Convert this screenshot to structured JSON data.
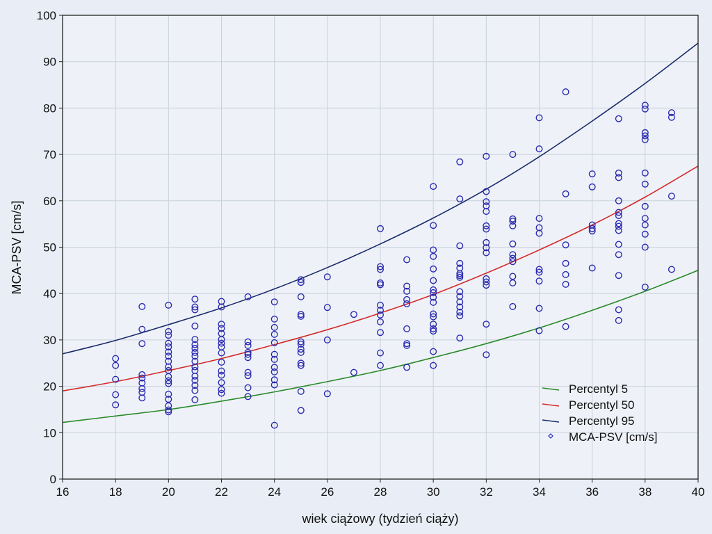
{
  "chart_data": {
    "type": "scatter",
    "xlabel": "wiek ciążowy (tydzień ciąży)",
    "ylabel": "MCA-PSV [cm/s]",
    "xlim": [
      16,
      40
    ],
    "ylim": [
      0,
      100
    ],
    "x_ticks": [
      "16",
      "18",
      "20",
      "22",
      "24",
      "26",
      "28",
      "30",
      "32",
      "34",
      "36",
      "38",
      "40"
    ],
    "y_ticks": [
      "0",
      "10",
      "20",
      "30",
      "40",
      "50",
      "60",
      "70",
      "80",
      "90",
      "100"
    ],
    "grid": true,
    "legend_position": "bottom-right",
    "legend": [
      {
        "label": "Percentyl 5",
        "color": "#2a8a2a",
        "kind": "line"
      },
      {
        "label": "Percentyl 50",
        "color": "#d42a2a",
        "kind": "line"
      },
      {
        "label": "Percentyl 95",
        "color": "#1a2a6a",
        "kind": "line"
      },
      {
        "label": "MCA-PSV [cm/s]",
        "color": "#2a2ab0",
        "kind": "marker"
      }
    ],
    "curves": [
      {
        "name": "Percentyl 5",
        "color": "#2a8a2a",
        "x": [
          16,
          18,
          20,
          22,
          24,
          26,
          28,
          30,
          32,
          34,
          36,
          38,
          40
        ],
        "y": [
          12.2,
          13.6,
          15.0,
          16.8,
          18.8,
          21.0,
          23.4,
          26.2,
          29.2,
          32.6,
          36.4,
          40.5,
          45.0
        ]
      },
      {
        "name": "Percentyl 50",
        "color": "#d42a2a",
        "x": [
          16,
          18,
          20,
          22,
          24,
          26,
          28,
          30,
          32,
          34,
          36,
          38,
          40
        ],
        "y": [
          19.0,
          21.0,
          23.4,
          26.0,
          29.0,
          32.2,
          35.8,
          39.8,
          44.4,
          49.4,
          54.8,
          60.8,
          67.5
        ]
      },
      {
        "name": "Percentyl 95",
        "color": "#1a2a6a",
        "x": [
          16,
          18,
          20,
          22,
          24,
          26,
          28,
          30,
          32,
          34,
          36,
          38,
          40
        ],
        "y": [
          27.0,
          29.9,
          33.3,
          36.9,
          41.0,
          45.6,
          50.7,
          56.3,
          62.5,
          69.5,
          77.2,
          85.3,
          94.0
        ]
      }
    ],
    "points": [
      [
        18,
        26
      ],
      [
        18,
        24.5
      ],
      [
        18,
        21.5
      ],
      [
        18,
        18.2
      ],
      [
        18,
        16
      ],
      [
        19,
        37.2
      ],
      [
        19,
        32.3
      ],
      [
        19,
        29.2
      ],
      [
        19,
        22.5
      ],
      [
        19,
        21.8
      ],
      [
        19,
        20.7
      ],
      [
        19,
        19.5
      ],
      [
        19,
        18.7
      ],
      [
        19,
        17.5
      ],
      [
        20,
        37.5
      ],
      [
        20,
        31.8
      ],
      [
        20,
        31
      ],
      [
        20,
        29.3
      ],
      [
        20,
        28.5
      ],
      [
        20,
        27.4
      ],
      [
        20,
        26.5
      ],
      [
        20,
        25.4
      ],
      [
        20,
        24.2
      ],
      [
        20,
        23.4
      ],
      [
        20,
        22.1
      ],
      [
        20,
        21.2
      ],
      [
        20,
        20.6
      ],
      [
        20,
        18.3
      ],
      [
        20,
        17.2
      ],
      [
        20,
        15.8
      ],
      [
        20,
        14.9
      ],
      [
        20,
        14.5
      ],
      [
        21,
        38.8
      ],
      [
        21,
        37.1
      ],
      [
        21,
        36.5
      ],
      [
        21,
        33
      ],
      [
        21,
        30.1
      ],
      [
        21,
        29
      ],
      [
        21,
        28.2
      ],
      [
        21,
        27.3
      ],
      [
        21,
        26.5
      ],
      [
        21,
        25.4
      ],
      [
        21,
        24.2
      ],
      [
        21,
        23.4
      ],
      [
        21,
        22.2
      ],
      [
        21,
        21.3
      ],
      [
        21,
        20.2
      ],
      [
        21,
        19.1
      ],
      [
        21,
        17.1
      ],
      [
        22,
        38.3
      ],
      [
        22,
        37.1
      ],
      [
        22,
        33.4
      ],
      [
        22,
        32.5
      ],
      [
        22,
        31.4
      ],
      [
        22,
        30.1
      ],
      [
        22,
        29.3
      ],
      [
        22,
        28.5
      ],
      [
        22,
        27.2
      ],
      [
        22,
        25.2
      ],
      [
        22,
        23.3
      ],
      [
        22,
        22.4
      ],
      [
        22,
        20.8
      ],
      [
        22,
        19.3
      ],
      [
        22,
        18.5
      ],
      [
        23,
        39.3
      ],
      [
        23,
        29.6
      ],
      [
        23,
        28.8
      ],
      [
        23,
        27.3
      ],
      [
        23,
        26.9
      ],
      [
        23,
        26.2
      ],
      [
        23,
        23
      ],
      [
        23,
        22.3
      ],
      [
        23,
        19.7
      ],
      [
        23,
        17.8
      ],
      [
        24,
        38.2
      ],
      [
        24,
        34.5
      ],
      [
        24,
        32.7
      ],
      [
        24,
        31.2
      ],
      [
        24,
        29.4
      ],
      [
        24,
        26.9
      ],
      [
        24,
        25.8
      ],
      [
        24,
        24.1
      ],
      [
        24,
        23.1
      ],
      [
        24,
        21.4
      ],
      [
        24,
        20.3
      ],
      [
        24,
        11.6
      ],
      [
        25,
        43
      ],
      [
        25,
        42.4
      ],
      [
        25,
        39.3
      ],
      [
        25,
        35.5
      ],
      [
        25,
        35.1
      ],
      [
        25,
        29.6
      ],
      [
        25,
        29.1
      ],
      [
        25,
        28
      ],
      [
        25,
        27.3
      ],
      [
        25,
        25
      ],
      [
        25,
        24.5
      ],
      [
        25,
        18.9
      ],
      [
        25,
        14.8
      ],
      [
        26,
        43.6
      ],
      [
        26,
        37
      ],
      [
        26,
        30
      ],
      [
        26,
        18.4
      ],
      [
        27,
        35.5
      ],
      [
        27,
        23
      ],
      [
        28,
        54
      ],
      [
        28,
        45.8
      ],
      [
        28,
        45.2
      ],
      [
        28,
        42.3
      ],
      [
        28,
        41.9
      ],
      [
        28,
        37.5
      ],
      [
        28,
        36.4
      ],
      [
        28,
        35.4
      ],
      [
        28,
        33.9
      ],
      [
        28,
        31.6
      ],
      [
        28,
        27.2
      ],
      [
        28,
        24.5
      ],
      [
        29,
        47.3
      ],
      [
        29,
        41.6
      ],
      [
        29,
        40.5
      ],
      [
        29,
        38.7
      ],
      [
        29,
        37.8
      ],
      [
        29,
        32.4
      ],
      [
        29,
        29.2
      ],
      [
        29,
        28.8
      ],
      [
        29,
        24.1
      ],
      [
        30,
        63.1
      ],
      [
        30,
        54.7
      ],
      [
        30,
        49.4
      ],
      [
        30,
        48
      ],
      [
        30,
        45.3
      ],
      [
        30,
        42.8
      ],
      [
        30,
        40.8
      ],
      [
        30,
        40.2
      ],
      [
        30,
        39.2
      ],
      [
        30,
        38.1
      ],
      [
        30,
        35.6
      ],
      [
        30,
        35
      ],
      [
        30,
        33.4
      ],
      [
        30,
        32.4
      ],
      [
        30,
        31.9
      ],
      [
        30,
        27.5
      ],
      [
        30,
        24.5
      ],
      [
        31,
        68.4
      ],
      [
        31,
        60.4
      ],
      [
        31,
        50.3
      ],
      [
        31,
        46.5
      ],
      [
        31,
        45.5
      ],
      [
        31,
        44.3
      ],
      [
        31,
        43.9
      ],
      [
        31,
        43.5
      ],
      [
        31,
        40.4
      ],
      [
        31,
        39.4
      ],
      [
        31,
        38.2
      ],
      [
        31,
        37.1
      ],
      [
        31,
        36
      ],
      [
        31,
        35.2
      ],
      [
        31,
        30.4
      ],
      [
        32,
        69.6
      ],
      [
        32,
        62
      ],
      [
        32,
        59.8
      ],
      [
        32,
        58.9
      ],
      [
        32,
        57.7
      ],
      [
        32,
        54.6
      ],
      [
        32,
        53.9
      ],
      [
        32,
        51
      ],
      [
        32,
        49.9
      ],
      [
        32,
        48.8
      ],
      [
        32,
        43.2
      ],
      [
        32,
        42.5
      ],
      [
        32,
        41.8
      ],
      [
        32,
        33.4
      ],
      [
        32,
        26.8
      ],
      [
        33,
        70
      ],
      [
        33,
        56.1
      ],
      [
        33,
        55.6
      ],
      [
        33,
        54.6
      ],
      [
        33,
        50.7
      ],
      [
        33,
        48.4
      ],
      [
        33,
        47.6
      ],
      [
        33,
        46.9
      ],
      [
        33,
        43.7
      ],
      [
        33,
        42.3
      ],
      [
        33,
        37.2
      ],
      [
        34,
        77.9
      ],
      [
        34,
        71.2
      ],
      [
        34,
        56.2
      ],
      [
        34,
        54.2
      ],
      [
        34,
        53
      ],
      [
        34,
        45.2
      ],
      [
        34,
        44.6
      ],
      [
        34,
        42.7
      ],
      [
        34,
        36.8
      ],
      [
        34,
        32
      ],
      [
        35,
        83.5
      ],
      [
        35,
        61.5
      ],
      [
        35,
        50.5
      ],
      [
        35,
        46.5
      ],
      [
        35,
        44.1
      ],
      [
        35,
        42
      ],
      [
        35,
        32.9
      ],
      [
        36,
        65.8
      ],
      [
        36,
        63
      ],
      [
        36,
        54.8
      ],
      [
        36,
        54
      ],
      [
        36,
        53.5
      ],
      [
        36,
        45.5
      ],
      [
        37,
        77.7
      ],
      [
        37,
        66
      ],
      [
        37,
        65
      ],
      [
        37,
        60
      ],
      [
        37,
        57.5
      ],
      [
        37,
        56.8
      ],
      [
        37,
        55.1
      ],
      [
        37,
        54.5
      ],
      [
        37,
        53.6
      ],
      [
        37,
        50.6
      ],
      [
        37,
        48.4
      ],
      [
        37,
        43.9
      ],
      [
        37,
        36.5
      ],
      [
        37,
        34.2
      ],
      [
        38,
        80.6
      ],
      [
        38,
        79.8
      ],
      [
        38,
        74.7
      ],
      [
        38,
        74
      ],
      [
        38,
        73.2
      ],
      [
        38,
        66
      ],
      [
        38,
        63.6
      ],
      [
        38,
        58.8
      ],
      [
        38,
        56.2
      ],
      [
        38,
        54.8
      ],
      [
        38,
        52.8
      ],
      [
        38,
        50
      ],
      [
        38,
        41.4
      ],
      [
        39,
        79
      ],
      [
        39,
        78
      ],
      [
        39,
        61
      ],
      [
        39,
        45.2
      ]
    ]
  }
}
